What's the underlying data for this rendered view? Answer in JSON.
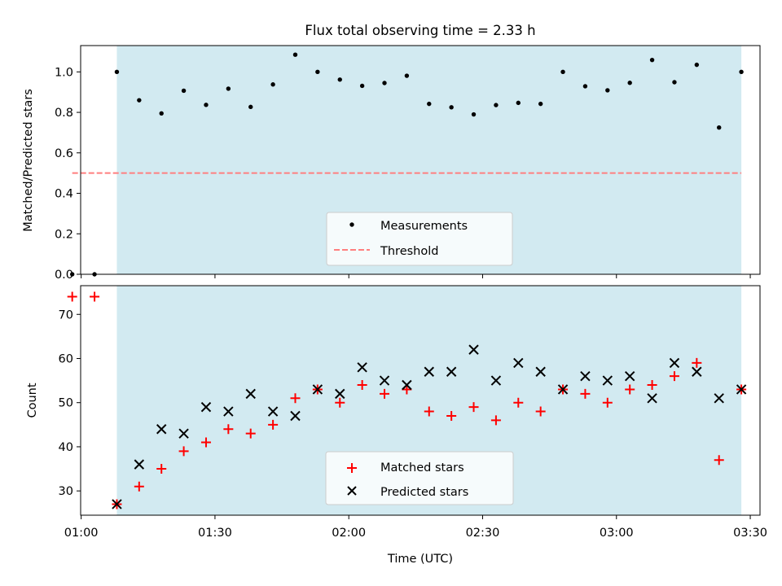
{
  "chart_data": [
    {
      "type": "scatter",
      "title": "Flux total observing time = 2.33 h",
      "ylabel": "Matched/Predicted stars",
      "ylim": [
        0,
        1.13
      ],
      "yticks": [
        "0.0",
        "0.2",
        "0.4",
        "0.6",
        "0.8",
        "1.0"
      ],
      "xlim": [
        "00:59:53",
        "03:32:11"
      ],
      "shaded_range": [
        "01:08",
        "03:28"
      ],
      "shade_color": "#add8e6",
      "threshold": {
        "name": "Threshold",
        "value": 0.5,
        "x_range": [
          "00:58",
          "03:28"
        ],
        "color": "#ff7f7f"
      },
      "series": [
        {
          "name": "Measurements",
          "marker": "dot",
          "color": "#000000",
          "x": [
            "00:58",
            "01:03",
            "01:08",
            "01:13",
            "01:18",
            "01:23",
            "01:28",
            "01:33",
            "01:38",
            "01:43",
            "01:48",
            "01:53",
            "01:58",
            "02:03",
            "02:08",
            "02:13",
            "02:18",
            "02:23",
            "02:28",
            "02:33",
            "02:38",
            "02:43",
            "02:48",
            "02:53",
            "02:58",
            "03:03",
            "03:08",
            "03:13",
            "03:18",
            "03:23",
            "03:28"
          ],
          "values": [
            0.0,
            0.0,
            1.0,
            0.86,
            0.795,
            0.907,
            0.837,
            0.917,
            0.827,
            0.938,
            1.085,
            1.0,
            0.962,
            0.931,
            0.945,
            0.981,
            0.842,
            0.825,
            0.79,
            0.836,
            0.847,
            0.842,
            1.0,
            0.929,
            0.909,
            0.946,
            1.059,
            0.949,
            1.035,
            0.725,
            1.0
          ]
        }
      ],
      "legend": [
        "Measurements",
        "Threshold"
      ],
      "legend_loc": "lower center"
    },
    {
      "type": "scatter",
      "xlabel": "Time (UTC)",
      "ylabel": "Count",
      "ylim": [
        24.5,
        76.5
      ],
      "yticks": [
        "30",
        "40",
        "50",
        "60",
        "70"
      ],
      "xticks": [
        "01:00",
        "01:30",
        "02:00",
        "02:30",
        "03:00",
        "03:30"
      ],
      "xlim": [
        "00:59:53",
        "03:32:11"
      ],
      "shaded_range": [
        "01:08",
        "03:28"
      ],
      "series": [
        {
          "name": "Matched stars",
          "marker": "plus",
          "color": "#ff0000",
          "x": [
            "00:58",
            "01:03",
            "01:08",
            "01:13",
            "01:18",
            "01:23",
            "01:28",
            "01:33",
            "01:38",
            "01:43",
            "01:48",
            "01:53",
            "01:58",
            "02:03",
            "02:08",
            "02:13",
            "02:18",
            "02:23",
            "02:28",
            "02:33",
            "02:38",
            "02:43",
            "02:48",
            "02:53",
            "02:58",
            "03:03",
            "03:08",
            "03:13",
            "03:18",
            "03:23",
            "03:28"
          ],
          "values": [
            74,
            74,
            27,
            31,
            35,
            39,
            41,
            44,
            43,
            45,
            51,
            53,
            50,
            54,
            52,
            53,
            48,
            47,
            49,
            46,
            50,
            48,
            53,
            52,
            50,
            53,
            54,
            56,
            59,
            37,
            53
          ]
        },
        {
          "name": "Predicted stars",
          "marker": "x",
          "color": "#000000",
          "x": [
            "01:08",
            "01:13",
            "01:18",
            "01:23",
            "01:28",
            "01:33",
            "01:38",
            "01:43",
            "01:48",
            "01:53",
            "01:58",
            "02:03",
            "02:08",
            "02:13",
            "02:18",
            "02:23",
            "02:28",
            "02:33",
            "02:38",
            "02:43",
            "02:48",
            "02:53",
            "02:58",
            "03:03",
            "03:08",
            "03:13",
            "03:18",
            "03:23",
            "03:28"
          ],
          "values": [
            27,
            36,
            44,
            43,
            49,
            48,
            52,
            48,
            47,
            53,
            52,
            58,
            55,
            54,
            57,
            57,
            62,
            55,
            59,
            57,
            53,
            56,
            55,
            56,
            51,
            59,
            57,
            51,
            53
          ]
        }
      ],
      "legend": [
        "Matched stars",
        "Predicted stars"
      ],
      "legend_loc": "lower center"
    }
  ]
}
